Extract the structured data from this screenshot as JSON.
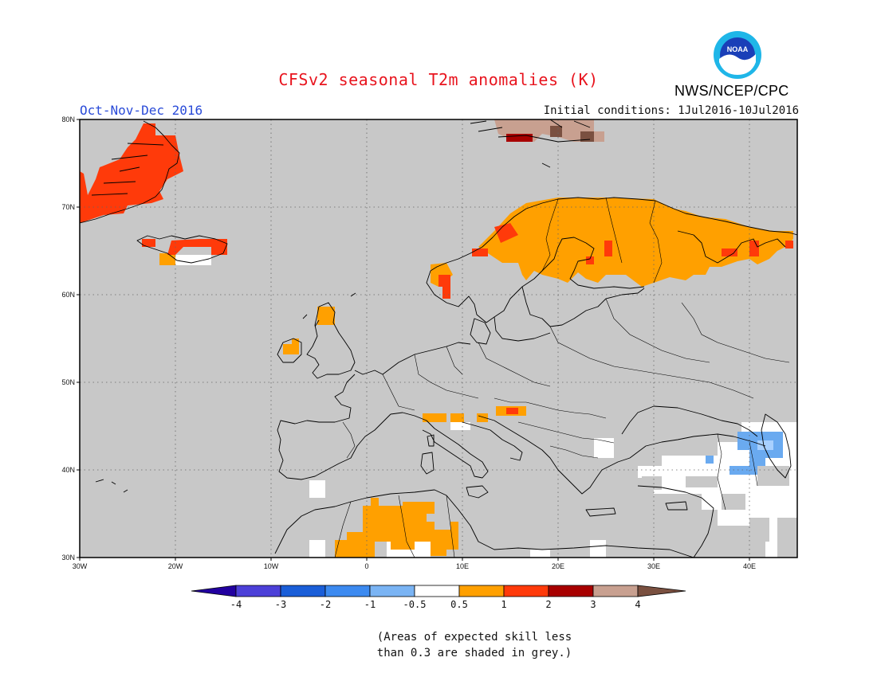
{
  "header": {
    "title": "CFSv2 seasonal T2m anomalies (K)",
    "period": "Oct-Nov-Dec 2016",
    "initial_conditions": "Initial conditions: 1Jul2016-10Jul2016",
    "agency": "NWS/NCEP/CPC",
    "logo_text": "NOAA"
  },
  "map": {
    "extent": {
      "lon": [
        -30,
        45
      ],
      "lat": [
        30,
        80
      ]
    },
    "lon_ticks": [
      "30W",
      "20W",
      "10W",
      "0",
      "10E",
      "20E",
      "30E",
      "40E"
    ],
    "lat_ticks": [
      "80N",
      "70N",
      "60N",
      "50N",
      "40N",
      "30N"
    ],
    "grid": "dotted",
    "background": "grey (low skill)",
    "colors": {
      "grey": "#c8c8c8",
      "white": "#ffffff",
      "orange": "#ffa000",
      "red": "#ff3a0a",
      "darkred": "#a80000",
      "tan": "#c8a090",
      "brown": "#7a5040",
      "blue": "#6aaaf0",
      "lightblue": "#a8d0ff",
      "coast": "#000000"
    }
  },
  "colorbar": {
    "boundaries": [
      "-4",
      "-3",
      "-2",
      "-1",
      "-0.5",
      "0.5",
      "1",
      "2",
      "3",
      "4"
    ],
    "colors": [
      "#2200a0",
      "#4c40d8",
      "#1a5ed8",
      "#3c8af0",
      "#7ab4f4",
      "#ffffff",
      "#ffa000",
      "#ff3a0a",
      "#a80000",
      "#c8a090",
      "#7a5040"
    ]
  },
  "footnote": {
    "line1": "(Areas of expected skill less",
    "line2": "than 0.3 are shaded in grey.)"
  }
}
